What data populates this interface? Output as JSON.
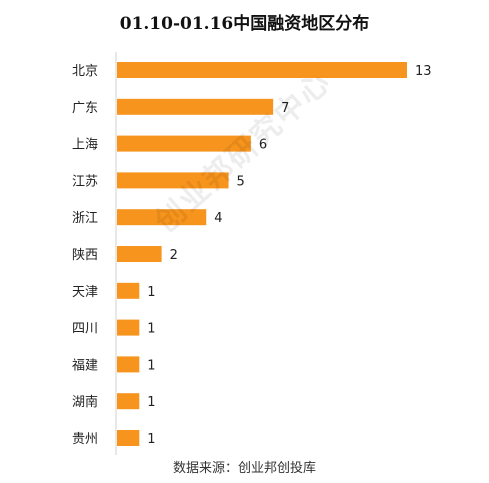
{
  "chart_data": {
    "type": "bar",
    "orientation": "horizontal",
    "title": "01.10-01.16中国融资地区分布",
    "categories": [
      "北京",
      "广东",
      "上海",
      "江苏",
      "浙江",
      "陕西",
      "天津",
      "四川",
      "福建",
      "湖南",
      "贵州"
    ],
    "values": [
      13,
      7,
      6,
      5,
      4,
      2,
      1,
      1,
      1,
      1,
      1
    ],
    "xlim": [
      0,
      13
    ],
    "grid": false,
    "legend": "none",
    "bar_color": "#F7941D",
    "source": "数据来源：创业邦创投库",
    "watermark": "创业邦研究中心"
  }
}
